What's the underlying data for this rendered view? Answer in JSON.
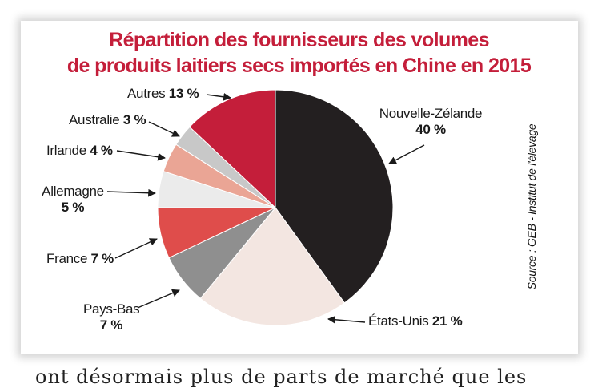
{
  "chart_data": {
    "type": "pie",
    "title": "Répartition des fournisseurs des volumes de produits laitiers secs importés en Chine en 2015",
    "title_lines": [
      "Répartition des fournisseurs des volumes",
      "de produits laitiers secs importés en Chine en 2015"
    ],
    "unit": "%",
    "slices": [
      {
        "name": "Nouvelle-Zélande",
        "value": 40,
        "label": "40 %",
        "color": "#231f20"
      },
      {
        "name": "États-Unis",
        "value": 21,
        "label": "21 %",
        "color": "#f3e6e1"
      },
      {
        "name": "Pays-Bas",
        "value": 7,
        "label": "7 %",
        "color": "#8f8f8f"
      },
      {
        "name": "France",
        "value": 7,
        "label": "7 %",
        "color": "#df4d4b"
      },
      {
        "name": "Allemagne",
        "value": 5,
        "label": "5 %",
        "color": "#ebebeb"
      },
      {
        "name": "Irlande",
        "value": 4,
        "label": "4 %",
        "color": "#eaa595"
      },
      {
        "name": "Australie",
        "value": 3,
        "label": "3 %",
        "color": "#c8c8c8"
      },
      {
        "name": "Autres",
        "value": 13,
        "label": "13 %",
        "color": "#c41e3a"
      }
    ],
    "source": "Source : GEB - Institut de l'élevage",
    "title_color": "#c41e3a"
  },
  "page_text": "ont désormais plus de parts de marché que les"
}
